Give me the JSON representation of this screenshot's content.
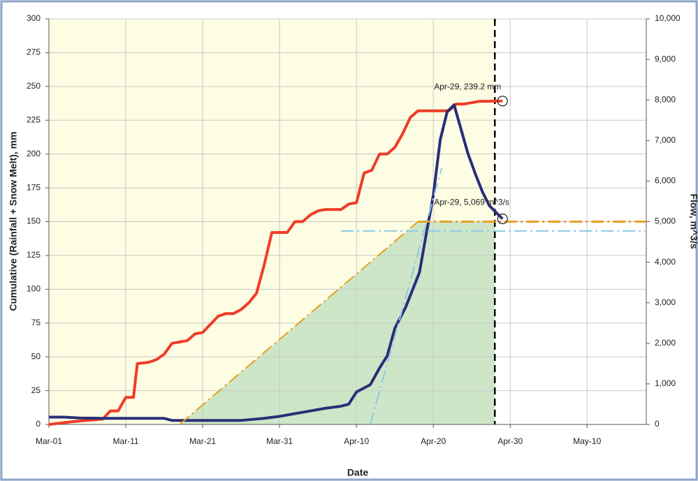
{
  "chart_data": {
    "type": "line",
    "xlabel": "Date",
    "ylabel": "Cumulative (Rainfall + Snow Melt), mm",
    "y2label": "Flow, m^3/s",
    "xlim": [
      0,
      77.7
    ],
    "xticks": [
      {
        "value": 0,
        "label": "Mar-01"
      },
      {
        "value": 10,
        "label": "Mar-11"
      },
      {
        "value": 20,
        "label": "Mar-21"
      },
      {
        "value": 30,
        "label": "Mar-31"
      },
      {
        "value": 40,
        "label": "Apr-10"
      },
      {
        "value": 50,
        "label": "Apr-20"
      },
      {
        "value": 60,
        "label": "Apr-30"
      },
      {
        "value": 70,
        "label": "May-10"
      }
    ],
    "ylim": [
      0,
      300
    ],
    "yticks": [
      0,
      25,
      50,
      75,
      100,
      125,
      150,
      175,
      200,
      225,
      250,
      275,
      300
    ],
    "y2lim": [
      0,
      10000
    ],
    "y2ticks": [
      0,
      {
        "value": 1000,
        "label": "1,000"
      },
      {
        "value": 2000,
        "label": "2,000"
      },
      {
        "value": 3000,
        "label": "3,000"
      },
      {
        "value": 4000,
        "label": "4,000"
      },
      {
        "value": 5000,
        "label": "5,000"
      },
      {
        "value": 6000,
        "label": "6,000"
      },
      {
        "value": 7000,
        "label": "7,000"
      },
      {
        "value": 8000,
        "label": "8,000"
      },
      {
        "value": 9000,
        "label": "9,000"
      },
      {
        "value": 10000,
        "label": "10,000"
      }
    ],
    "grid": true,
    "background_region": {
      "x": [
        0,
        58
      ],
      "color": "#fdfde3"
    },
    "areas": [
      {
        "x": [
          17,
          48,
          58,
          58
        ],
        "values": [
          0,
          150,
          150,
          0
        ],
        "color": "#cde6c8"
      }
    ],
    "vlines": [
      58
    ],
    "series": [
      {
        "color": "#f03c28",
        "width": 4,
        "x": [
          0,
          3,
          5,
          7,
          8,
          9,
          10,
          11,
          11.5,
          13,
          14,
          15,
          16,
          17,
          18,
          19,
          20,
          21,
          22,
          23,
          24,
          25,
          26,
          27,
          28,
          29,
          30,
          31,
          32,
          33,
          34,
          35,
          36,
          37,
          38,
          39,
          40,
          41,
          42,
          43,
          44,
          45,
          46,
          47,
          48,
          49,
          50,
          51,
          52,
          53,
          54,
          55,
          56,
          57,
          58,
          59
        ],
        "values": [
          0,
          2,
          3,
          4,
          10,
          10,
          20,
          20,
          45,
          46,
          48,
          52,
          60,
          61,
          62,
          67,
          68,
          74,
          80,
          82,
          82,
          85,
          90,
          97,
          118,
          142,
          142,
          142,
          150,
          150,
          155,
          158,
          159,
          159,
          159,
          163,
          164,
          186,
          188,
          200,
          200,
          205,
          215,
          227,
          232,
          232,
          232,
          232,
          232,
          237,
          237,
          238,
          239,
          239,
          239.2,
          239.2
        ]
      },
      {
        "color": "#2a2f78",
        "width": 4,
        "axis": "y2",
        "x": [
          0,
          2,
          4,
          7,
          10,
          15,
          16,
          20,
          25,
          28,
          30,
          33,
          36,
          38,
          39,
          40,
          41.8,
          43,
          44,
          45,
          46.4,
          47.3,
          48.2,
          49,
          50,
          50.9,
          51.8,
          52.7,
          53.6,
          54.5,
          55.5,
          56.4,
          57.3,
          59
        ],
        "values": [
          180,
          180,
          160,
          150,
          150,
          150,
          100,
          100,
          100,
          150,
          200,
          300,
          400,
          450,
          500,
          800,
          980,
          1390,
          1690,
          2375,
          2890,
          3320,
          3750,
          4610,
          5650,
          7020,
          7710,
          7880,
          7280,
          6680,
          6160,
          5730,
          5390,
          5069
        ]
      },
      {
        "color": "#e8a020",
        "width": 2,
        "dash": "18 5 3 5",
        "x": [
          17,
          48
        ],
        "values": [
          0,
          150
        ]
      },
      {
        "color": "#e8a020",
        "width": 3,
        "dash": "18 5 3 5",
        "x": [
          48,
          77.7
        ],
        "values": [
          150,
          150
        ]
      },
      {
        "color": "#8ecae6",
        "width": 2,
        "dash": "18 5 3 5",
        "axis": "y2",
        "x": [
          41.8,
          51.1
        ],
        "values": [
          0,
          6330
        ]
      },
      {
        "color": "#8ecae6",
        "width": 2,
        "dash": "18 5 3 5",
        "axis": "y2",
        "x": [
          38,
          77.7
        ],
        "values": [
          4770,
          4770
        ]
      }
    ],
    "annotations": [
      {
        "text": "Apr-29, 239.2 mm",
        "x": 59,
        "y": 239.2
      },
      {
        "text": "Apr-29, 5,069 m^3/s",
        "x": 59,
        "y": 5069,
        "axis": "y2"
      }
    ]
  }
}
